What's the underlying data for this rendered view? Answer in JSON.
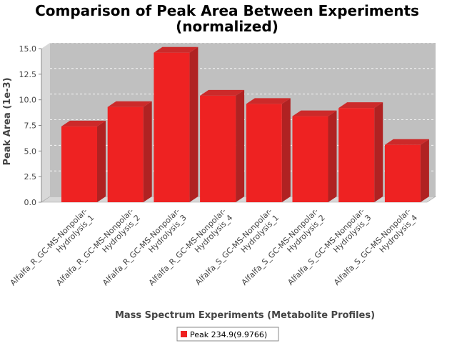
{
  "chart_data": {
    "type": "bar",
    "title_lines": [
      "Comparison of Peak Area Between Experiments",
      "(normalized)"
    ],
    "xlabel": "Mass Spectrum Experiments (Metabolite Profiles)",
    "ylabel": "Peak Area (1e-3)",
    "ylim": [
      0,
      15.0
    ],
    "yticks": [
      "0.0",
      "2.5",
      "5.0",
      "7.5",
      "10.0",
      "12.5",
      "15.0"
    ],
    "categories": [
      [
        "Alfalfa_R_GC-MS-Nonpolar-",
        "Hydrolysis_1"
      ],
      [
        "Alfalfa_R_GC-MS-Nonpolar-",
        "Hydrolysis_2"
      ],
      [
        "Alfalfa_R_GC-MS-Nonpolar-",
        "Hydrolysis_3"
      ],
      [
        "Alfalfa_R_GC-MS-Nonpolar-",
        "Hydrolysis_4"
      ],
      [
        "Alfalfa_S_GC-MS-Nonpolar-",
        "Hydrolysis_1"
      ],
      [
        "Alfalfa_S_GC-MS-Nonpolar-",
        "Hydrolysis_2"
      ],
      [
        "Alfalfa_S_GC-MS-Nonpolar-",
        "Hydrolysis_3"
      ],
      [
        "Alfalfa_S_GC-MS-Nonpolar-",
        "Hydrolysis_4"
      ]
    ],
    "series": [
      {
        "name": "Peak 234.9(9.9766)",
        "color": "#ee2222",
        "values": [
          7.4,
          9.3,
          14.6,
          10.4,
          9.6,
          8.4,
          9.2,
          5.6
        ]
      }
    ],
    "grid": true,
    "legend": "bottom-center",
    "style": "3d-bar"
  }
}
